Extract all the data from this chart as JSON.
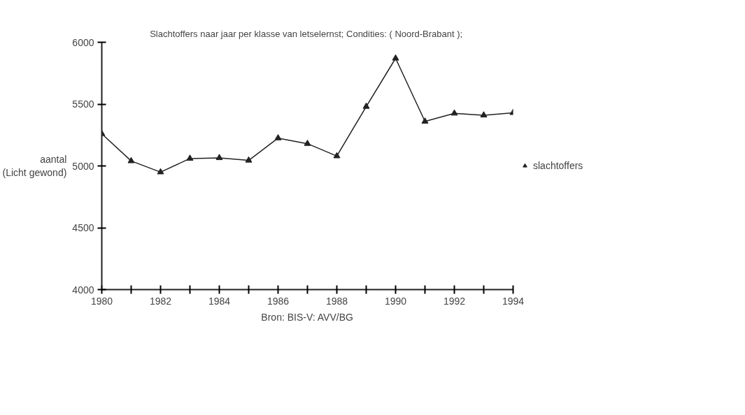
{
  "chart_data": {
    "type": "line",
    "title": "Slachtoffers naar jaar per klasse van letselernst; Condities:  ( Noord-Brabant );",
    "ylabel": "aantal\n(Licht gewond)",
    "annotations": [
      "Bron: BIS-V: AVV/BG"
    ],
    "x": [
      1980,
      1981,
      1982,
      1983,
      1984,
      1985,
      1986,
      1987,
      1988,
      1989,
      1990,
      1991,
      1992,
      1993,
      1994
    ],
    "series": [
      {
        "name": "slachtoffers",
        "color": "#222222",
        "values": [
          5260,
          5040,
          4950,
          5060,
          5065,
          5045,
          5225,
          5180,
          5080,
          5480,
          5870,
          5360,
          5425,
          5410,
          5430
        ]
      }
    ],
    "xlim": [
      1980,
      1994
    ],
    "xticks": [
      1980,
      {
        "value": 1981,
        "label": null
      },
      1982,
      {
        "value": 1983,
        "label": null
      },
      1984,
      {
        "value": 1985,
        "label": null
      },
      1986,
      {
        "value": 1987,
        "label": null
      },
      1988,
      {
        "value": 1989,
        "label": null
      },
      1990,
      {
        "value": 1991,
        "label": null
      },
      1992,
      {
        "value": 1993,
        "label": null
      },
      1994
    ],
    "ylim": [
      4000,
      6000
    ],
    "yticks": [
      4000,
      4500,
      5000,
      5500,
      6000
    ],
    "grid": false,
    "legend": "right",
    "marker": "triangle",
    "line_style": "solid"
  }
}
